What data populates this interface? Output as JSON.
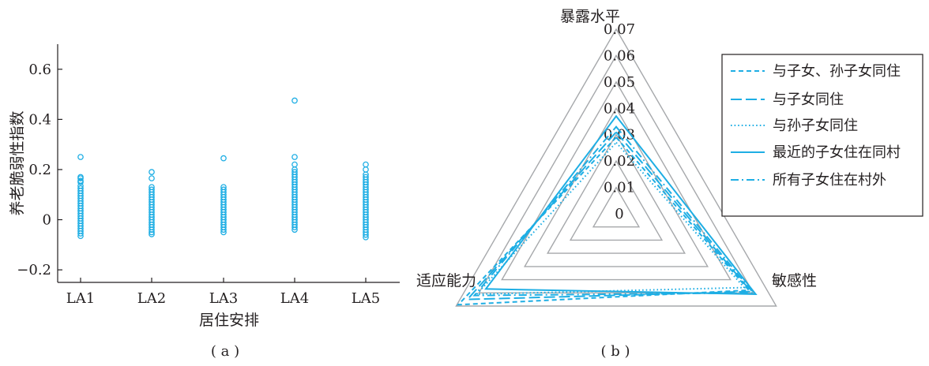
{
  "panel_a": {
    "label": "( a )",
    "chart_data": {
      "type": "scatter",
      "xlabel": "居住安排",
      "ylabel": "养老脆弱性指数",
      "categories": [
        "LA1",
        "LA2",
        "LA3",
        "LA4",
        "LA5"
      ],
      "ylim": [
        -0.25,
        0.7
      ],
      "yticks": [
        -0.2,
        0,
        0.2,
        0.4,
        0.6
      ],
      "ytick_labels": [
        "−0.2",
        "0",
        "0.2",
        "0.4",
        "0.6"
      ],
      "grid": false,
      "marker": "open-circle",
      "color": "#1eaee4",
      "series": [
        {
          "category": "LA1",
          "values": [
            0.25,
            0.17,
            0.165,
            0.155,
            0.15,
            0.135,
            0.125,
            0.115,
            0.105,
            0.095,
            0.085,
            0.075,
            0.065,
            0.055,
            0.045,
            0.035,
            0.025,
            0.015,
            0.005,
            -0.005,
            -0.015,
            -0.025,
            -0.035,
            -0.045,
            -0.055,
            -0.065
          ]
        },
        {
          "category": "LA2",
          "values": [
            0.19,
            0.165,
            0.13,
            0.12,
            0.11,
            0.1,
            0.09,
            0.08,
            0.07,
            0.06,
            0.05,
            0.04,
            0.03,
            0.02,
            0.01,
            0.0,
            -0.01,
            -0.02,
            -0.03,
            -0.04,
            -0.05,
            -0.058
          ]
        },
        {
          "category": "LA3",
          "values": [
            0.245,
            0.13,
            0.12,
            0.11,
            0.1,
            0.09,
            0.08,
            0.07,
            0.06,
            0.05,
            0.04,
            0.03,
            0.02,
            0.01,
            0.0,
            -0.01,
            -0.02,
            -0.03,
            -0.04,
            -0.05
          ]
        },
        {
          "category": "LA4",
          "values": [
            0.475,
            0.25,
            0.22,
            0.2,
            0.19,
            0.18,
            0.17,
            0.16,
            0.15,
            0.14,
            0.13,
            0.12,
            0.11,
            0.1,
            0.09,
            0.08,
            0.07,
            0.06,
            0.05,
            0.04,
            0.03,
            0.02,
            0.01,
            0.0,
            -0.01,
            -0.02,
            -0.03,
            -0.04
          ]
        },
        {
          "category": "LA5",
          "values": [
            0.22,
            0.2,
            0.18,
            0.17,
            0.16,
            0.15,
            0.14,
            0.13,
            0.12,
            0.11,
            0.1,
            0.09,
            0.08,
            0.07,
            0.06,
            0.05,
            0.04,
            0.03,
            0.02,
            0.01,
            0.0,
            -0.01,
            -0.02,
            -0.03,
            -0.04,
            -0.05,
            -0.06,
            -0.07
          ]
        }
      ]
    }
  },
  "panel_b": {
    "label": "( b )",
    "chart_data": {
      "type": "radar",
      "axes": [
        "暴露水平",
        "敏感性",
        "适应能力"
      ],
      "rlim": [
        0,
        0.07
      ],
      "rticks": [
        0,
        0.01,
        0.02,
        0.03,
        0.04,
        0.05,
        0.06,
        0.07
      ],
      "rtick_labels": [
        "0",
        "0.01",
        "0.02",
        "0.03",
        "0.04",
        "0.05",
        "0.06",
        "0.07"
      ],
      "grid": true,
      "legend_position": "right",
      "series": [
        {
          "name": "与子女、孙子女同住",
          "style": "dashed",
          "color": "#1eaee4",
          "values": [
            0.029,
            0.058,
            0.069
          ]
        },
        {
          "name": "与子女同住",
          "style": "long-dash",
          "color": "#1eaee4",
          "values": [
            0.031,
            0.059,
            0.065
          ]
        },
        {
          "name": "与孙子女同住",
          "style": "dotted",
          "color": "#1eaee4",
          "values": [
            0.027,
            0.056,
            0.061
          ]
        },
        {
          "name": "最近的子女住在同村",
          "style": "solid",
          "color": "#1eaee4",
          "values": [
            0.037,
            0.061,
            0.057
          ]
        },
        {
          "name": "所有子女住在村外",
          "style": "dash-dot",
          "color": "#1eaee4",
          "values": [
            0.033,
            0.06,
            0.062
          ]
        }
      ]
    }
  }
}
